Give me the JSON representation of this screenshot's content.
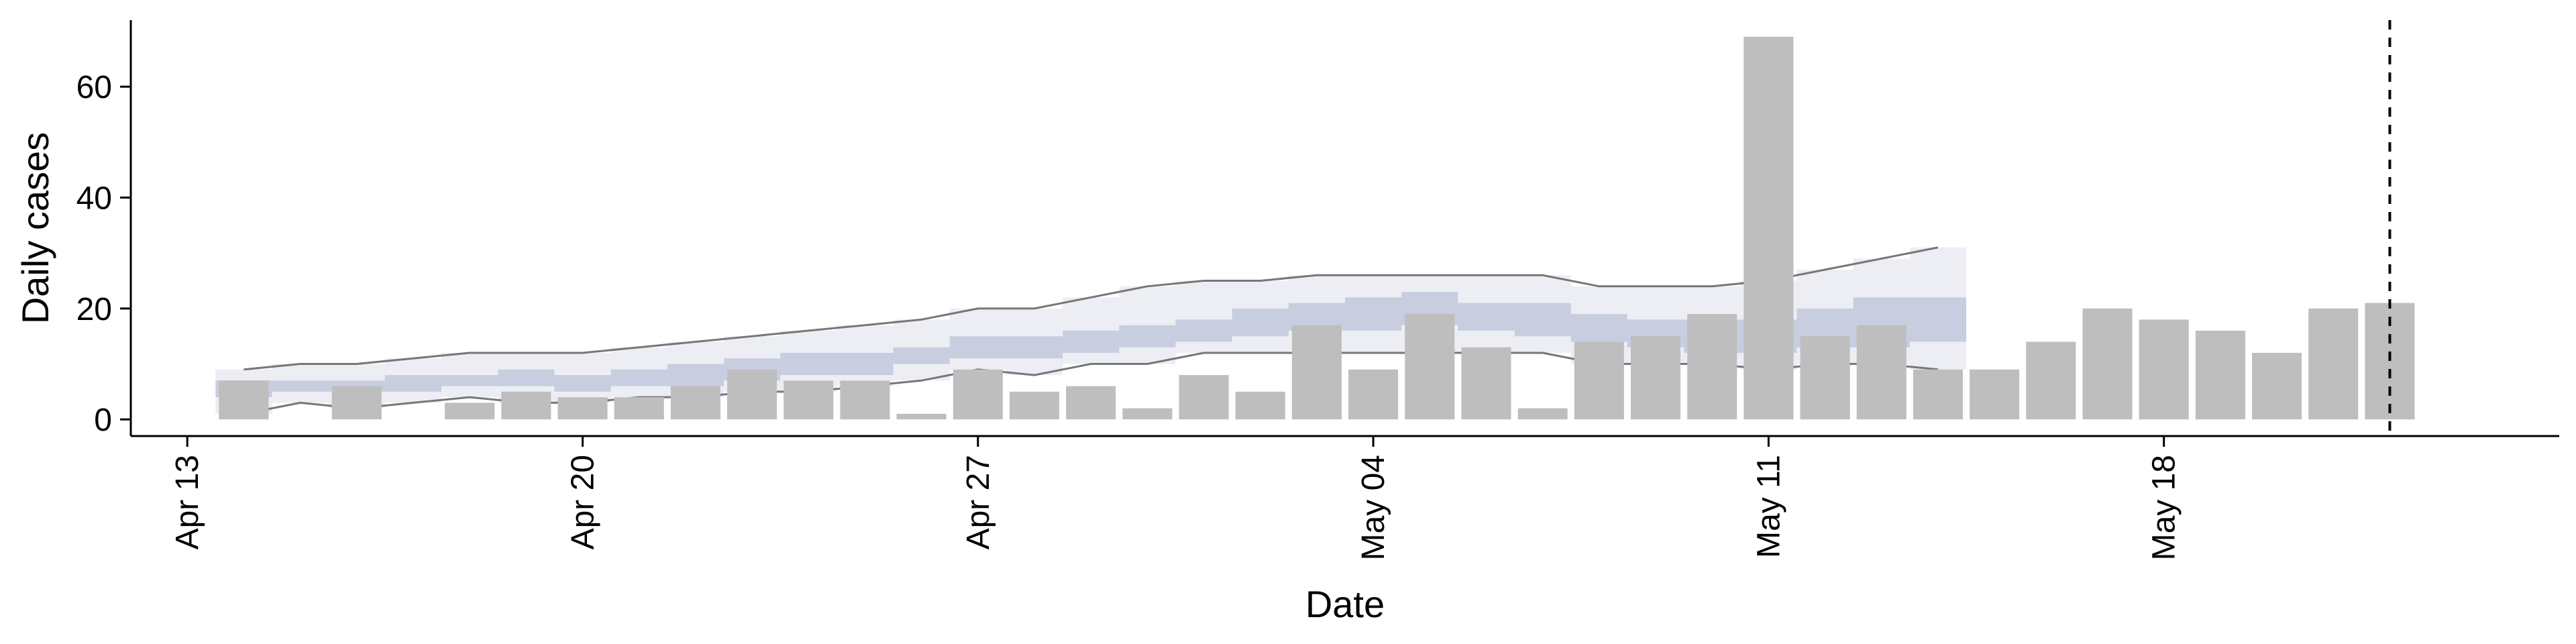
{
  "chart_data": {
    "type": "bar",
    "xlabel": "Date",
    "ylabel": "Daily cases",
    "ylim": [
      -3,
      72
    ],
    "yticks": [
      0,
      20,
      40,
      60
    ],
    "xticks": [
      {
        "date": "2020-04-13",
        "label": "Apr 13"
      },
      {
        "date": "2020-04-20",
        "label": "Apr 20"
      },
      {
        "date": "2020-04-27",
        "label": "Apr 27"
      },
      {
        "date": "2020-05-04",
        "label": "May 04"
      },
      {
        "date": "2020-05-11",
        "label": "May 11"
      },
      {
        "date": "2020-05-18",
        "label": "May 18"
      }
    ],
    "xrange": [
      "2020-04-12",
      "2020-05-25"
    ],
    "reference_date": "2020-05-22",
    "bars": [
      {
        "date": "2020-04-14",
        "value": 7
      },
      {
        "date": "2020-04-15",
        "value": 0
      },
      {
        "date": "2020-04-16",
        "value": 6
      },
      {
        "date": "2020-04-17",
        "value": 0
      },
      {
        "date": "2020-04-18",
        "value": 3
      },
      {
        "date": "2020-04-19",
        "value": 5
      },
      {
        "date": "2020-04-20",
        "value": 4
      },
      {
        "date": "2020-04-21",
        "value": 4
      },
      {
        "date": "2020-04-22",
        "value": 6
      },
      {
        "date": "2020-04-23",
        "value": 9
      },
      {
        "date": "2020-04-24",
        "value": 7
      },
      {
        "date": "2020-04-25",
        "value": 7
      },
      {
        "date": "2020-04-26",
        "value": 1
      },
      {
        "date": "2020-04-27",
        "value": 9
      },
      {
        "date": "2020-04-28",
        "value": 5
      },
      {
        "date": "2020-04-29",
        "value": 6
      },
      {
        "date": "2020-04-30",
        "value": 2
      },
      {
        "date": "2020-05-01",
        "value": 8
      },
      {
        "date": "2020-05-02",
        "value": 5
      },
      {
        "date": "2020-05-03",
        "value": 17
      },
      {
        "date": "2020-05-04",
        "value": 9
      },
      {
        "date": "2020-05-05",
        "value": 19
      },
      {
        "date": "2020-05-06",
        "value": 13
      },
      {
        "date": "2020-05-07",
        "value": 2
      },
      {
        "date": "2020-05-08",
        "value": 14
      },
      {
        "date": "2020-05-09",
        "value": 15
      },
      {
        "date": "2020-05-10",
        "value": 19
      },
      {
        "date": "2020-05-11",
        "value": 69
      },
      {
        "date": "2020-05-12",
        "value": 15
      },
      {
        "date": "2020-05-13",
        "value": 17
      },
      {
        "date": "2020-05-14",
        "value": 9
      },
      {
        "date": "2020-05-15",
        "value": 9
      },
      {
        "date": "2020-05-16",
        "value": 14
      },
      {
        "date": "2020-05-17",
        "value": 20
      },
      {
        "date": "2020-05-18",
        "value": 18
      },
      {
        "date": "2020-05-19",
        "value": 16
      },
      {
        "date": "2020-05-20",
        "value": 12
      },
      {
        "date": "2020-05-21",
        "value": 20
      },
      {
        "date": "2020-05-22",
        "value": 21
      }
    ],
    "band": [
      {
        "date": "2020-04-14",
        "lo90": 1,
        "lo50": 4,
        "hi50": 7,
        "hi90": 9
      },
      {
        "date": "2020-04-15",
        "lo90": 3,
        "lo50": 5,
        "hi50": 7,
        "hi90": 10
      },
      {
        "date": "2020-04-16",
        "lo90": 2,
        "lo50": 5,
        "hi50": 7,
        "hi90": 10
      },
      {
        "date": "2020-04-17",
        "lo90": 3,
        "lo50": 5,
        "hi50": 8,
        "hi90": 11
      },
      {
        "date": "2020-04-18",
        "lo90": 4,
        "lo50": 6,
        "hi50": 8,
        "hi90": 12
      },
      {
        "date": "2020-04-19",
        "lo90": 3,
        "lo50": 6,
        "hi50": 9,
        "hi90": 12
      },
      {
        "date": "2020-04-20",
        "lo90": 3,
        "lo50": 5,
        "hi50": 8,
        "hi90": 12
      },
      {
        "date": "2020-04-21",
        "lo90": 4,
        "lo50": 6,
        "hi50": 9,
        "hi90": 13
      },
      {
        "date": "2020-04-22",
        "lo90": 4,
        "lo50": 6,
        "hi50": 10,
        "hi90": 14
      },
      {
        "date": "2020-04-23",
        "lo90": 5,
        "lo50": 7,
        "hi50": 11,
        "hi90": 15
      },
      {
        "date": "2020-04-24",
        "lo90": 5,
        "lo50": 8,
        "hi50": 12,
        "hi90": 16
      },
      {
        "date": "2020-04-25",
        "lo90": 6,
        "lo50": 8,
        "hi50": 12,
        "hi90": 17
      },
      {
        "date": "2020-04-26",
        "lo90": 7,
        "lo50": 10,
        "hi50": 13,
        "hi90": 18
      },
      {
        "date": "2020-04-27",
        "lo90": 9,
        "lo50": 11,
        "hi50": 15,
        "hi90": 20
      },
      {
        "date": "2020-04-28",
        "lo90": 8,
        "lo50": 11,
        "hi50": 15,
        "hi90": 20
      },
      {
        "date": "2020-04-29",
        "lo90": 10,
        "lo50": 12,
        "hi50": 16,
        "hi90": 22
      },
      {
        "date": "2020-04-30",
        "lo90": 10,
        "lo50": 13,
        "hi50": 17,
        "hi90": 24
      },
      {
        "date": "2020-05-01",
        "lo90": 12,
        "lo50": 14,
        "hi50": 18,
        "hi90": 25
      },
      {
        "date": "2020-05-02",
        "lo90": 12,
        "lo50": 15,
        "hi50": 20,
        "hi90": 25
      },
      {
        "date": "2020-05-03",
        "lo90": 12,
        "lo50": 16,
        "hi50": 21,
        "hi90": 26
      },
      {
        "date": "2020-05-04",
        "lo90": 12,
        "lo50": 16,
        "hi50": 22,
        "hi90": 26
      },
      {
        "date": "2020-05-05",
        "lo90": 12,
        "lo50": 17,
        "hi50": 23,
        "hi90": 26
      },
      {
        "date": "2020-05-06",
        "lo90": 12,
        "lo50": 16,
        "hi50": 21,
        "hi90": 26
      },
      {
        "date": "2020-05-07",
        "lo90": 12,
        "lo50": 15,
        "hi50": 21,
        "hi90": 26
      },
      {
        "date": "2020-05-08",
        "lo90": 10,
        "lo50": 14,
        "hi50": 19,
        "hi90": 24
      },
      {
        "date": "2020-05-09",
        "lo90": 10,
        "lo50": 13,
        "hi50": 18,
        "hi90": 24
      },
      {
        "date": "2020-05-10",
        "lo90": 10,
        "lo50": 12,
        "hi50": 18,
        "hi90": 24
      },
      {
        "date": "2020-05-11",
        "lo90": 9,
        "lo50": 12,
        "hi50": 18,
        "hi90": 25
      },
      {
        "date": "2020-05-12",
        "lo90": 10,
        "lo50": 13,
        "hi50": 20,
        "hi90": 27
      },
      {
        "date": "2020-05-13",
        "lo90": 10,
        "lo50": 13,
        "hi50": 22,
        "hi90": 29
      },
      {
        "date": "2020-05-14",
        "lo90": 9,
        "lo50": 14,
        "hi50": 22,
        "hi90": 31
      }
    ],
    "colors": {
      "bars": "#bebebe",
      "band_outer": "#bcc2d8",
      "band_inner": "#8f9bbf",
      "band_edge": "#777777",
      "reference_line": "#000000"
    }
  }
}
